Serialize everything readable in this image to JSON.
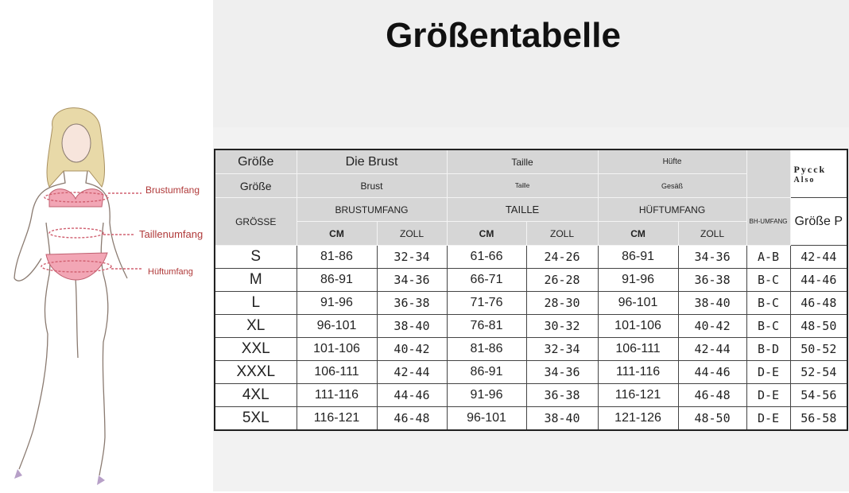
{
  "header": {
    "title": "Größentabelle"
  },
  "figure": {
    "labels": [
      "Brustumfang",
      "Taillenumfang",
      "Hüftumfang"
    ]
  },
  "table": {
    "header_row_1": [
      "Größe",
      "Die Brust",
      "Taille",
      "Hüfte",
      "Pycck",
      "Also"
    ],
    "header_row_2": [
      "Größe",
      "Brust",
      "Taille",
      "Gesäß"
    ],
    "header_row_3": [
      "GRÖSSE",
      "BRUSTUMFANG",
      "TAILLE",
      "HÜFTUMFANG",
      "BH-UMFANG",
      "Größe P"
    ],
    "header_row_4": [
      "CM",
      "ZOLL",
      "CM",
      "ZOLL",
      "CM",
      "ZOLL"
    ],
    "rows": [
      [
        "S",
        "81-86",
        "32-34",
        "61-66",
        "24-26",
        "86-91",
        "34-36",
        "A-B",
        "42-44"
      ],
      [
        "M",
        "86-91",
        "34-36",
        "66-71",
        "26-28",
        "91-96",
        "36-38",
        "B-C",
        "44-46"
      ],
      [
        "L",
        "91-96",
        "36-38",
        "71-76",
        "28-30",
        "96-101",
        "38-40",
        "B-C",
        "46-48"
      ],
      [
        "XL",
        "96-101",
        "38-40",
        "76-81",
        "30-32",
        "101-106",
        "40-42",
        "B-C",
        "48-50"
      ],
      [
        "XXL",
        "101-106",
        "40-42",
        "81-86",
        "32-34",
        "106-111",
        "42-44",
        "B-D",
        "50-52"
      ],
      [
        "XXXL",
        "106-111",
        "42-44",
        "86-91",
        "34-36",
        "111-116",
        "44-46",
        "D-E",
        "52-54"
      ],
      [
        "4XL",
        "111-116",
        "44-46",
        "91-96",
        "36-38",
        "116-121",
        "46-48",
        "D-E",
        "54-56"
      ],
      [
        "5XL",
        "116-121",
        "46-48",
        "96-101",
        "38-40",
        "121-126",
        "48-50",
        "D-E",
        "56-58"
      ]
    ]
  }
}
